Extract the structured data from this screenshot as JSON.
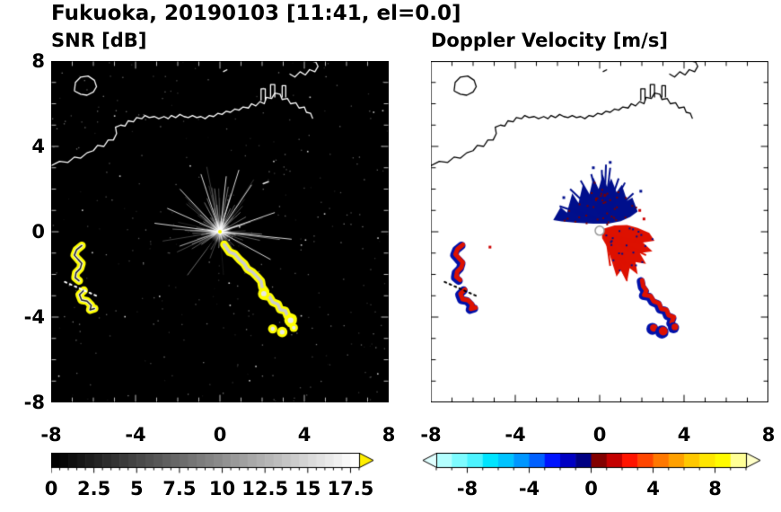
{
  "title": "Fukuoka, 20190103 [11:41, el=0.0]",
  "coastline": {
    "polylines": [
      [
        [
          -8.0,
          3.1
        ],
        [
          -7.6,
          3.3
        ],
        [
          -7.2,
          3.25
        ],
        [
          -6.9,
          3.5
        ],
        [
          -6.6,
          3.45
        ],
        [
          -6.3,
          3.7
        ],
        [
          -6.0,
          3.8
        ],
        [
          -5.8,
          4.05
        ],
        [
          -5.5,
          4.0
        ],
        [
          -5.3,
          4.3
        ],
        [
          -5.05,
          4.3
        ],
        [
          -4.9,
          4.6
        ],
        [
          -4.95,
          4.9
        ],
        [
          -4.7,
          5.0
        ],
        [
          -4.5,
          4.95
        ],
        [
          -4.35,
          5.2
        ],
        [
          -4.1,
          5.15
        ],
        [
          -3.95,
          5.35
        ],
        [
          -3.7,
          5.3
        ],
        [
          -3.55,
          5.45
        ],
        [
          -3.35,
          5.35
        ],
        [
          -3.1,
          5.4
        ],
        [
          -2.9,
          5.3
        ],
        [
          -2.65,
          5.4
        ],
        [
          -2.45,
          5.3
        ],
        [
          -2.3,
          5.45
        ],
        [
          -2.1,
          5.35
        ],
        [
          -1.9,
          5.5
        ],
        [
          -1.7,
          5.4
        ],
        [
          -1.5,
          5.35
        ],
        [
          -1.3,
          5.45
        ],
        [
          -1.1,
          5.35
        ],
        [
          -0.9,
          5.4
        ],
        [
          -0.7,
          5.3
        ],
        [
          -0.5,
          5.45
        ],
        [
          -0.3,
          5.4
        ],
        [
          -0.1,
          5.55
        ],
        [
          0.1,
          5.5
        ],
        [
          0.3,
          5.65
        ],
        [
          0.5,
          5.6
        ],
        [
          0.7,
          5.75
        ],
        [
          0.9,
          5.7
        ],
        [
          1.1,
          5.85
        ],
        [
          1.35,
          5.8
        ],
        [
          1.5,
          6.0
        ],
        [
          1.7,
          5.9
        ],
        [
          1.9,
          6.1
        ],
        [
          2.1,
          6.0
        ],
        [
          2.2,
          6.3
        ],
        [
          2.45,
          6.25
        ],
        [
          2.6,
          6.5
        ],
        [
          2.85,
          6.45
        ],
        [
          2.95,
          6.2
        ],
        [
          3.2,
          6.25
        ],
        [
          3.35,
          6.0
        ],
        [
          3.6,
          6.05
        ],
        [
          3.75,
          5.8
        ],
        [
          4.0,
          5.85
        ],
        [
          4.1,
          5.6
        ],
        [
          4.3,
          5.55
        ],
        [
          4.4,
          5.3
        ]
      ],
      [
        [
          1.95,
          6.15
        ],
        [
          1.95,
          6.7
        ],
        [
          2.15,
          6.7
        ],
        [
          2.15,
          6.15
        ]
      ],
      [
        [
          2.4,
          6.3
        ],
        [
          2.4,
          6.9
        ],
        [
          2.6,
          6.9
        ],
        [
          2.6,
          6.3
        ]
      ],
      [
        [
          2.95,
          6.3
        ],
        [
          2.95,
          6.85
        ],
        [
          3.12,
          6.85
        ],
        [
          3.12,
          6.3
        ]
      ],
      [
        [
          3.3,
          7.4
        ],
        [
          3.55,
          7.25
        ],
        [
          3.8,
          7.5
        ],
        [
          4.05,
          7.35
        ],
        [
          4.25,
          7.6
        ],
        [
          4.5,
          7.5
        ],
        [
          4.65,
          7.75
        ],
        [
          4.55,
          7.95
        ],
        [
          4.35,
          8.0
        ],
        [
          3.9,
          8.0
        ]
      ],
      [
        [
          -6.9,
          6.6
        ],
        [
          -6.6,
          6.45
        ],
        [
          -6.3,
          6.4
        ],
        [
          -6.0,
          6.55
        ],
        [
          -5.85,
          6.8
        ],
        [
          -5.95,
          7.1
        ],
        [
          -6.25,
          7.3
        ],
        [
          -6.6,
          7.25
        ],
        [
          -6.85,
          7.0
        ],
        [
          -6.9,
          6.6
        ]
      ],
      [
        [
          0.15,
          7.5
        ],
        [
          0.35,
          7.6
        ]
      ]
    ]
  },
  "chart_data": [
    {
      "type": "heatmap",
      "panel": "snr",
      "title": "SNR [dB]",
      "xlim": [
        -8,
        8
      ],
      "ylim": [
        -8,
        8
      ],
      "xticks": [
        -8,
        -4,
        0,
        4,
        8
      ],
      "yticks": [
        8,
        4,
        0,
        -4,
        -8
      ],
      "minor_tick": 1,
      "background": "#000000",
      "coast_color": "#ffffff",
      "tick_color": "#bbbbbb",
      "radar_center": [
        0,
        0
      ],
      "center_glow_radius": 0.55,
      "center_dot_color": "#ffff00",
      "clutter": {
        "seed": 42,
        "count": 150,
        "max_len": 3.2,
        "color": "255,255,255"
      },
      "bright_rays": [
        [
          -1.9,
          2.0
        ],
        [
          0.3,
          2.6
        ],
        [
          1.5,
          2.2
        ],
        [
          2.6,
          0.9
        ],
        [
          3.4,
          -0.35
        ],
        [
          2.4,
          -1.3
        ],
        [
          -2.5,
          1.1
        ],
        [
          -3.1,
          0.4
        ],
        [
          0.9,
          2.9
        ],
        [
          -0.9,
          2.7
        ]
      ],
      "shadow_rays": [
        [
          -2.3,
          -2.35
        ],
        [
          -1.15,
          -1.75
        ]
      ],
      "noise": {
        "seed": 7,
        "count": 320
      },
      "echo_bands": [
        {
          "points": [
            [
              0.2,
              -0.6
            ],
            [
              0.45,
              -0.95
            ],
            [
              0.7,
              -1.05
            ],
            [
              0.92,
              -1.3
            ],
            [
              1.15,
              -1.5
            ],
            [
              1.3,
              -1.75
            ],
            [
              1.55,
              -1.9
            ],
            [
              1.75,
              -2.1
            ],
            [
              1.95,
              -2.32
            ],
            [
              2.0,
              -2.6
            ],
            [
              2.15,
              -2.8
            ],
            [
              2.05,
              -3.0
            ],
            [
              2.35,
              -3.05
            ],
            [
              2.5,
              -3.3
            ],
            [
              2.75,
              -3.4
            ],
            [
              2.85,
              -3.65
            ],
            [
              3.1,
              -3.7
            ],
            [
              3.2,
              -3.95
            ],
            [
              3.45,
              -4.05
            ],
            [
              3.35,
              -4.3
            ]
          ],
          "fill": "#ffff00",
          "core": "#cccccc"
        },
        {
          "points": [
            [
              -6.55,
              -0.65
            ],
            [
              -6.8,
              -0.85
            ],
            [
              -6.9,
              -1.1
            ],
            [
              -6.72,
              -1.3
            ],
            [
              -6.55,
              -1.48
            ],
            [
              -6.62,
              -1.72
            ],
            [
              -6.82,
              -1.92
            ],
            [
              -6.86,
              -2.15
            ],
            [
              -6.68,
              -2.3
            ]
          ],
          "fill": "#ffff00",
          "core": "#eeeeee",
          "dark_core": "#222222"
        },
        {
          "points": [
            [
              -6.45,
              -2.75
            ],
            [
              -6.66,
              -2.95
            ],
            [
              -6.56,
              -3.2
            ],
            [
              -6.3,
              -3.25
            ],
            [
              -6.1,
              -3.45
            ],
            [
              -6.16,
              -3.66
            ],
            [
              -5.95,
              -3.6
            ]
          ],
          "fill": "#ffff00",
          "core": "#eeeeee",
          "dark_core": "#222222"
        }
      ],
      "echo_blobs": [
        [
          2.08,
          -2.9,
          0.28
        ],
        [
          3.35,
          -4.15,
          0.3
        ],
        [
          2.5,
          -4.55,
          0.22
        ],
        [
          2.95,
          -4.7,
          0.25
        ],
        [
          3.5,
          -4.5,
          0.2
        ]
      ],
      "dotted_line": {
        "from": [
          -7.35,
          -2.35
        ],
        "to": [
          -5.75,
          -3.05
        ],
        "color": "#ffffff"
      },
      "white_dashes": [
        [
          [
            2.05,
            2.25
          ],
          [
            2.3,
            2.35
          ]
        ]
      ],
      "colorbar": {
        "range": [
          0,
          18
        ],
        "ticks": [
          0,
          2.5,
          5,
          7.5,
          10,
          12.5,
          15,
          17.5
        ],
        "minor_step": 0.5,
        "gradient": [
          "#000000",
          "#ffffff"
        ],
        "over_arrow": "#ffee00"
      }
    },
    {
      "type": "heatmap",
      "panel": "doppler",
      "title": "Doppler Velocity [m/s]",
      "xlim": [
        -8,
        8
      ],
      "ylim": [
        -8,
        8
      ],
      "xticks": [
        -8,
        -4,
        0,
        4,
        8
      ],
      "yticks": [
        8,
        4,
        0,
        -4,
        -8
      ],
      "minor_tick": 1,
      "background": "#ffffff",
      "coast_color": "#000000",
      "tick_color": "#000000",
      "radar_center": [
        0,
        0.05
      ],
      "fans": [
        {
          "name": "approaching-blue",
          "fill": "#000f8c",
          "seed": 11,
          "speck_color": "#7a0000",
          "speck_count": 42,
          "spikes_from": [
            0.2,
            0.5
          ],
          "spikes": [
            [
              0.1,
              2.9
            ],
            [
              0.5,
              3.0
            ],
            [
              -0.4,
              2.7
            ],
            [
              0.9,
              2.5
            ],
            [
              -0.9,
              2.4
            ],
            [
              1.2,
              2.3
            ],
            [
              -1.4,
              2.0
            ],
            [
              1.6,
              1.8
            ],
            [
              -1.9,
              1.2
            ],
            [
              0.3,
              3.15
            ]
          ],
          "points": [
            [
              -2.2,
              0.55
            ],
            [
              -1.85,
              1.15
            ],
            [
              -1.55,
              0.9
            ],
            [
              -1.3,
              1.8
            ],
            [
              -1.0,
              1.35
            ],
            [
              -0.8,
              2.2
            ],
            [
              -0.5,
              1.7
            ],
            [
              -0.3,
              2.55
            ],
            [
              -0.05,
              2.0
            ],
            [
              0.15,
              2.7
            ],
            [
              0.35,
              2.1
            ],
            [
              0.55,
              2.5
            ],
            [
              0.8,
              1.85
            ],
            [
              1.05,
              2.2
            ],
            [
              1.3,
              1.45
            ],
            [
              1.55,
              1.6
            ],
            [
              1.8,
              0.95
            ],
            [
              1.45,
              0.7
            ],
            [
              1.0,
              0.5
            ],
            [
              0.4,
              0.38
            ],
            [
              -0.3,
              0.38
            ],
            [
              -1.1,
              0.42
            ],
            [
              -1.8,
              0.48
            ]
          ]
        },
        {
          "name": "receding-red",
          "fill": "#dd1100",
          "seed": 23,
          "speck_color": "#000f8c",
          "speck_count": 22,
          "spikes_from": [
            0.3,
            -0.2
          ],
          "spikes": [
            [
              1.5,
              -0.9
            ],
            [
              1.2,
              -1.5
            ],
            [
              0.9,
              -1.95
            ],
            [
              1.6,
              -1.6
            ],
            [
              2.2,
              -1.1
            ],
            [
              0.5,
              -1.6
            ],
            [
              1.95,
              -0.5
            ],
            [
              1.3,
              -2.3
            ]
          ],
          "points": [
            [
              0.1,
              0.12
            ],
            [
              0.7,
              0.3
            ],
            [
              1.3,
              0.32
            ],
            [
              1.8,
              0.18
            ],
            [
              2.35,
              -0.05
            ],
            [
              2.6,
              -0.42
            ],
            [
              2.05,
              -0.5
            ],
            [
              2.5,
              -0.92
            ],
            [
              1.9,
              -1.0
            ],
            [
              2.2,
              -1.5
            ],
            [
              1.7,
              -1.42
            ],
            [
              1.8,
              -2.0
            ],
            [
              1.42,
              -1.7
            ],
            [
              1.3,
              -2.35
            ],
            [
              1.0,
              -1.8
            ],
            [
              0.8,
              -2.1
            ],
            [
              0.55,
              -1.3
            ],
            [
              0.35,
              -0.7
            ],
            [
              0.12,
              -0.3
            ]
          ]
        }
      ],
      "edge_bands": [
        {
          "points": [
            [
              -6.55,
              -0.65
            ],
            [
              -6.8,
              -0.85
            ],
            [
              -6.9,
              -1.1
            ],
            [
              -6.72,
              -1.3
            ],
            [
              -6.55,
              -1.48
            ],
            [
              -6.62,
              -1.72
            ],
            [
              -6.82,
              -1.92
            ],
            [
              -6.86,
              -2.15
            ],
            [
              -6.68,
              -2.3
            ]
          ],
          "base": "#0011aa",
          "over": "#dd1100"
        },
        {
          "points": [
            [
              -6.45,
              -2.75
            ],
            [
              -6.66,
              -2.95
            ],
            [
              -6.56,
              -3.2
            ],
            [
              -6.3,
              -3.25
            ],
            [
              -6.1,
              -3.45
            ],
            [
              -6.16,
              -3.66
            ],
            [
              -5.95,
              -3.6
            ]
          ],
          "base": "#0011aa",
          "over": "#dd1100"
        },
        {
          "points": [
            [
              1.95,
              -2.32
            ],
            [
              2.0,
              -2.6
            ],
            [
              2.15,
              -2.8
            ],
            [
              2.05,
              -3.0
            ],
            [
              2.35,
              -3.05
            ],
            [
              2.5,
              -3.3
            ],
            [
              2.75,
              -3.4
            ],
            [
              2.85,
              -3.65
            ],
            [
              3.1,
              -3.7
            ],
            [
              3.2,
              -3.95
            ],
            [
              3.45,
              -4.05
            ],
            [
              3.35,
              -4.3
            ]
          ],
          "base": "#0011aa",
          "over": "#dd1100"
        }
      ],
      "edge_blobs": [
        [
          2.5,
          -4.55,
          0.22
        ],
        [
          2.95,
          -4.7,
          0.25
        ],
        [
          3.5,
          -4.5,
          0.2
        ]
      ],
      "stray_dots": [
        [
          0.5,
          3.25,
          "#000f8c"
        ],
        [
          -0.3,
          3.0,
          "#000f8c"
        ],
        [
          1.95,
          1.9,
          "#000f8c"
        ],
        [
          -1.7,
          1.6,
          "#000f8c"
        ],
        [
          1.9,
          1.0,
          "#cc0000"
        ],
        [
          2.1,
          0.6,
          "#cc0000"
        ],
        [
          -5.2,
          -0.72,
          "#cc0000"
        ]
      ],
      "dotted_line": {
        "from": [
          -7.35,
          -2.35
        ],
        "to": [
          -5.75,
          -3.05
        ],
        "color": "#000000"
      },
      "center_marker": {
        "radius_px": 5,
        "fill": "#ffffff",
        "stroke": "#999999"
      },
      "colorbar": {
        "range": [
          -10,
          10
        ],
        "ticks": [
          -8,
          -4,
          0,
          4,
          8
        ],
        "minor_step": 1,
        "segment_colors": [
          "#b4ffff",
          "#7dfbff",
          "#4df3ff",
          "#00e4ff",
          "#00c3ff",
          "#0096ff",
          "#0060ff",
          "#0014ff",
          "#0000c3",
          "#000082",
          "#820000",
          "#c30000",
          "#ff1400",
          "#ff4600",
          "#ff7800",
          "#ffa000",
          "#ffc800",
          "#ffe600",
          "#fffb00",
          "#ffff96"
        ],
        "under_arrow": "#e1ffff",
        "over_arrow": "#ffffc8"
      }
    }
  ]
}
